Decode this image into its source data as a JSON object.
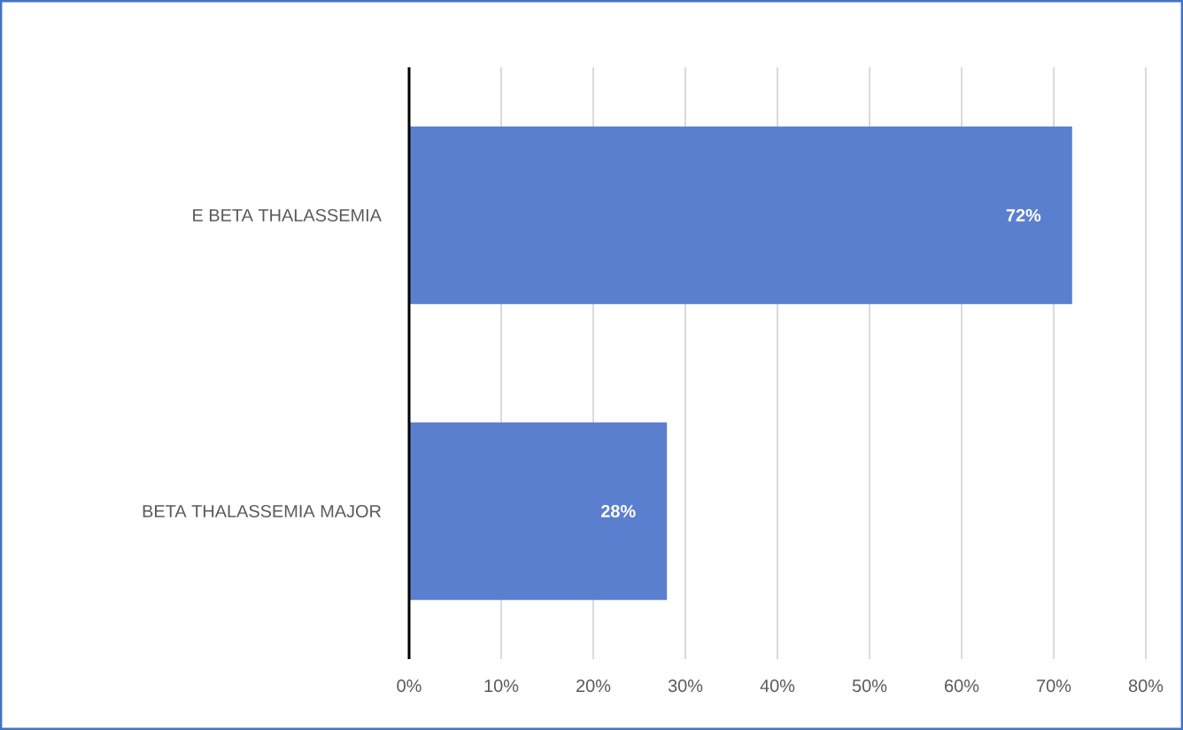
{
  "chart_data": {
    "type": "bar",
    "orientation": "horizontal",
    "categories": [
      "E BETA THALASSEMIA",
      "BETA THALASSEMIA MAJOR"
    ],
    "values": [
      72,
      28
    ],
    "color": "#5b7fcf",
    "value_labels": [
      "72%",
      "28%"
    ],
    "xlim": [
      0,
      80
    ],
    "xticks": [
      {
        "value": 0,
        "label": "0%"
      },
      {
        "value": 10,
        "label": "10%"
      },
      {
        "value": 20,
        "label": "20%"
      },
      {
        "value": 30,
        "label": "30%"
      },
      {
        "value": 40,
        "label": "40%"
      },
      {
        "value": 50,
        "label": "50%"
      },
      {
        "value": 60,
        "label": "60%"
      },
      {
        "value": 70,
        "label": "70%"
      },
      {
        "value": 80,
        "label": "80%"
      }
    ],
    "grid": "x"
  }
}
